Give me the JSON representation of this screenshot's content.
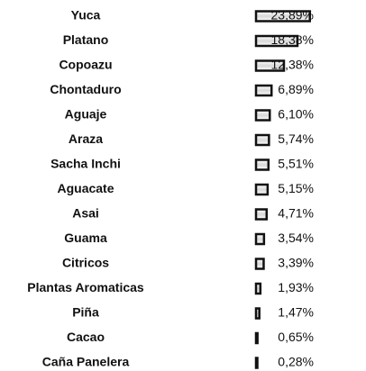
{
  "chart_data": {
    "type": "bar",
    "orientation": "horizontal",
    "categories": [
      "Yuca",
      "Platano",
      "Copoazu",
      "Chontaduro",
      "Aguaje",
      "Araza",
      "Sacha Inchi",
      "Aguacate",
      "Asai",
      "Guama",
      "Citricos",
      "Plantas Aromaticas",
      "Piña",
      "Cacao",
      "Caña Panelera"
    ],
    "values": [
      23.89,
      18.38,
      12.38,
      6.89,
      6.1,
      5.74,
      5.51,
      5.15,
      4.71,
      3.54,
      3.39,
      1.93,
      1.47,
      0.65,
      0.28
    ],
    "value_labels": [
      "23,89%",
      "18,38%",
      "12,38%",
      "6,89%",
      "6,10%",
      "5,74%",
      "5,51%",
      "5,15%",
      "4,71%",
      "3,54%",
      "3,39%",
      "1,93%",
      "1,47%",
      "0,65%",
      "0,28%"
    ],
    "color": "#111111"
  }
}
